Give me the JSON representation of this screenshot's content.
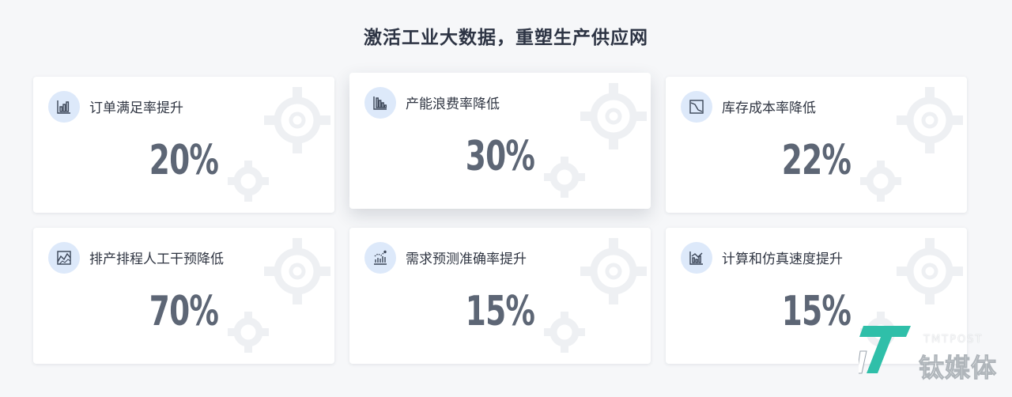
{
  "page": {
    "title": "激活工业大数据，重塑生产供应网"
  },
  "cards": [
    {
      "label": "订单满足率提升",
      "value": "20%",
      "icon": "bar-chart-icon"
    },
    {
      "label": "产能浪费率降低",
      "value": "30%",
      "icon": "descending-bars-icon"
    },
    {
      "label": "库存成本率降低",
      "value": "22%",
      "icon": "downtrend-icon"
    },
    {
      "label": "排产排程人工干预降低",
      "value": "70%",
      "icon": "area-chart-icon"
    },
    {
      "label": "需求预测准确率提升",
      "value": "15%",
      "icon": "forecast-icon"
    },
    {
      "label": "计算和仿真速度提升",
      "value": "15%",
      "icon": "bar-line-chart-icon"
    }
  ],
  "watermark": {
    "english": "TMTPOST",
    "chinese": "钛媒体"
  },
  "colors": {
    "background": "#f6f7f9",
    "card": "#ffffff",
    "icon_circle": "#dde9fa",
    "icon_stroke": "#3a4456",
    "value_text": "#5d6675",
    "title_text": "#2d3444",
    "watermark_teal": "#2fbfa9"
  }
}
